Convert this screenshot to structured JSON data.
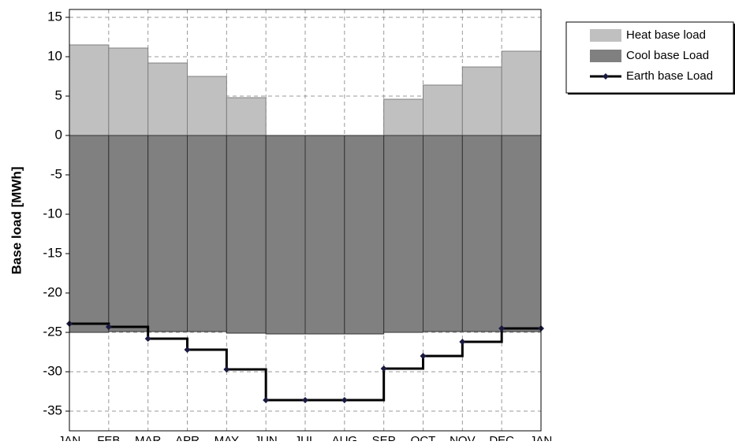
{
  "chart_data": {
    "type": "bar-step",
    "y_label": "Base load [MWh]",
    "categories": [
      "JAN",
      "FEB",
      "MAR",
      "APR",
      "MAY",
      "JUN",
      "JUL",
      "AUG",
      "SEP",
      "OCT",
      "NOV",
      "DEC",
      "JAN"
    ],
    "series": [
      {
        "name": "Heat base load",
        "kind": "bar",
        "color": "#c0c0c0",
        "values": [
          11.5,
          11.1,
          9.2,
          7.5,
          4.8,
          0,
          0,
          0,
          4.6,
          6.4,
          8.7,
          10.7,
          null
        ]
      },
      {
        "name": "Cool base Load",
        "kind": "bar",
        "color": "#808080",
        "values": [
          -25.0,
          -24.9,
          -24.9,
          -24.9,
          -25.1,
          -25.2,
          -25.2,
          -25.2,
          -25.0,
          -24.9,
          -24.9,
          -24.9,
          null
        ]
      },
      {
        "name": "Earth base Load",
        "kind": "step",
        "color": "#000000",
        "values": [
          -23.9,
          -24.3,
          -25.8,
          -27.2,
          -29.7,
          -33.6,
          -33.6,
          -33.6,
          -29.6,
          -28.0,
          -26.2,
          -24.5,
          -24.5
        ]
      }
    ],
    "ylim": [
      -37.5,
      16
    ],
    "yticks": [
      -35,
      -30,
      -25,
      -20,
      -15,
      -10,
      -5,
      0,
      5,
      10,
      15
    ],
    "grid": true,
    "legend": "top-right"
  }
}
